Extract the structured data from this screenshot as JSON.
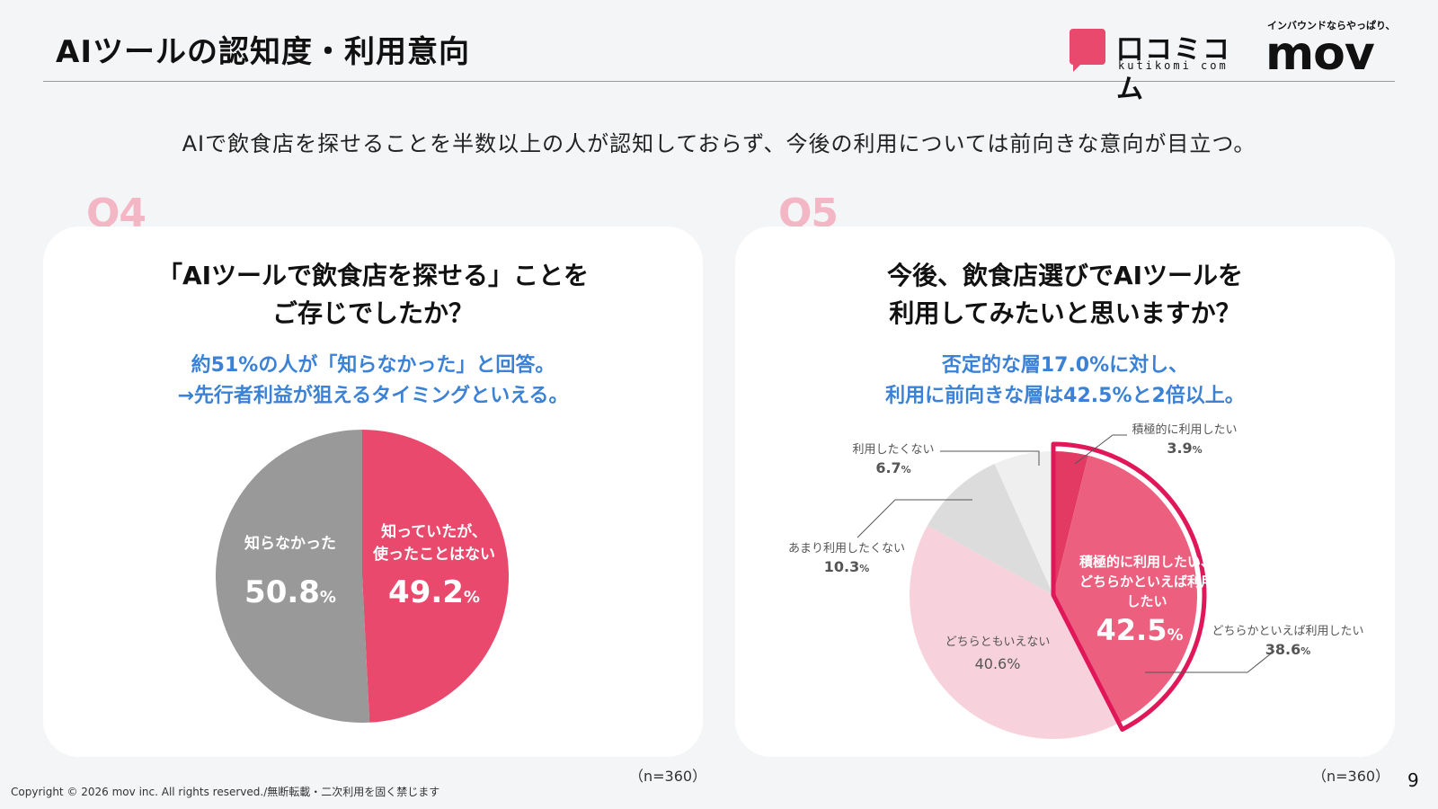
{
  "header": {
    "title": "AIツールの認知度・利用意向",
    "logo_kuti_jp": "口コミコム",
    "logo_kuti_en": "kutikomi com",
    "logo_mov_tag": "インバウンドならやっぱり、",
    "logo_mov_word": "mov"
  },
  "lead": "AIで飲食店を探せることを半数以上の人が認知しておらず、今後の利用については前向きな意向が目立つ。",
  "q4": {
    "label": "Q4",
    "question_line1": "「AIツールで飲食店を探せる」ことを",
    "question_line2": "ご存じでしたか？",
    "note_line1": "約51%の人が「知らなかった」と回答。",
    "note_line2": "→先行者利益が狙えるタイミングといえる。",
    "n_label": "（n=360）"
  },
  "q5": {
    "label": "Q5",
    "question_line1": "今後、飲食店選びでAIツールを",
    "question_line2": "利用してみたいと思いますか？",
    "note_line1": "否定的な層17.0%に対し、",
    "note_line2": "利用に前向きな層は42.5%と2倍以上。",
    "n_label": "（n=360）",
    "highlight_line1": "積極的に利用したい、",
    "highlight_line2": "どちらかといえば利用",
    "highlight_line3": "したい",
    "highlight_value": "42.5",
    "highlight_color": "#e0185a"
  },
  "chart_data": [
    {
      "type": "pie",
      "title": "「AIツールで飲食店を探せる」ことをご存じでしたか？",
      "slices": [
        {
          "label_lines": [
            "知っていたが、",
            "使ったことはない"
          ],
          "value": 49.2,
          "value_text": "49.2",
          "color": "#e8496c"
        },
        {
          "label_lines": [
            "知らなかった"
          ],
          "value": 50.8,
          "value_text": "50.8",
          "color": "#999999"
        }
      ],
      "unit": "%"
    },
    {
      "type": "pie",
      "title": "今後、飲食店選びでAIツールを利用してみたいと思いますか？",
      "slices": [
        {
          "label": "積極的に利用したい",
          "value": 3.9,
          "value_text": "3.9",
          "color": "#e23a63"
        },
        {
          "label": "どちらかといえば利用したい",
          "value": 38.6,
          "value_text": "38.6",
          "color": "#ec5f7e"
        },
        {
          "label": "どちらともいえない",
          "value": 40.6,
          "value_text": "40.6",
          "color": "#f7d2dc"
        },
        {
          "label": "あまり利用したくない",
          "value": 10.3,
          "value_text": "10.3",
          "color": "#dcdcdc"
        },
        {
          "label": "利用したくない",
          "value": 6.7,
          "value_text": "6.7",
          "color": "#efefef"
        }
      ],
      "unit": "%"
    }
  ],
  "footer": {
    "copyright": "Copyright © 2026 mov inc. All rights reserved./無断転載・二次利用を固く禁じます",
    "page_number": "9"
  }
}
